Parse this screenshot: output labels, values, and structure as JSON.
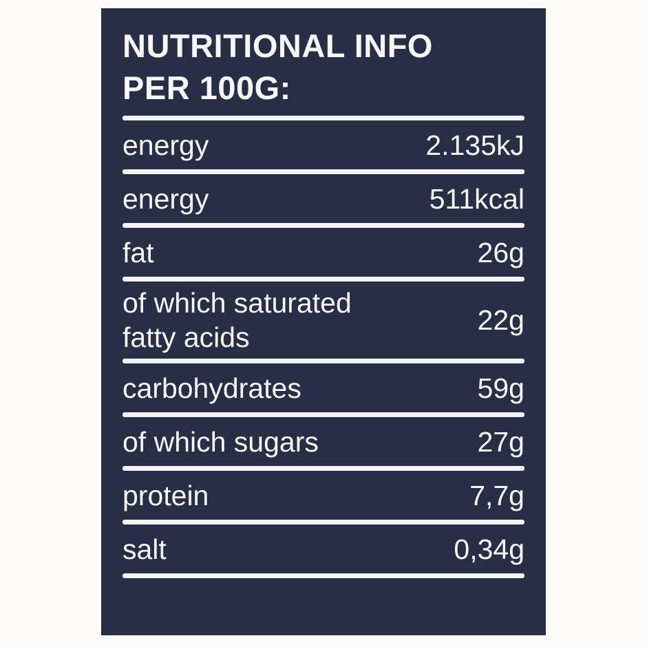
{
  "panel": {
    "title_line1": "NUTRITIONAL INFO",
    "title_line2": "PER 100G:",
    "rows": [
      {
        "label": "energy",
        "value": "2.135kJ"
      },
      {
        "label": "energy",
        "value": "511kcal"
      },
      {
        "label": "fat",
        "value": "26g"
      },
      {
        "label": "of which saturated fatty acids",
        "value": "22g"
      },
      {
        "label": "carbohydrates",
        "value": "59g"
      },
      {
        "label": "of which sugars",
        "value": "27g"
      },
      {
        "label": "protein",
        "value": "7,7g"
      },
      {
        "label": "salt",
        "value": "0,34g"
      }
    ],
    "colors": {
      "panel_bg": "#272e46",
      "text": "#f6f6f6",
      "rule": "#f4f4f4",
      "page_bg": "#fcfbf8"
    }
  }
}
